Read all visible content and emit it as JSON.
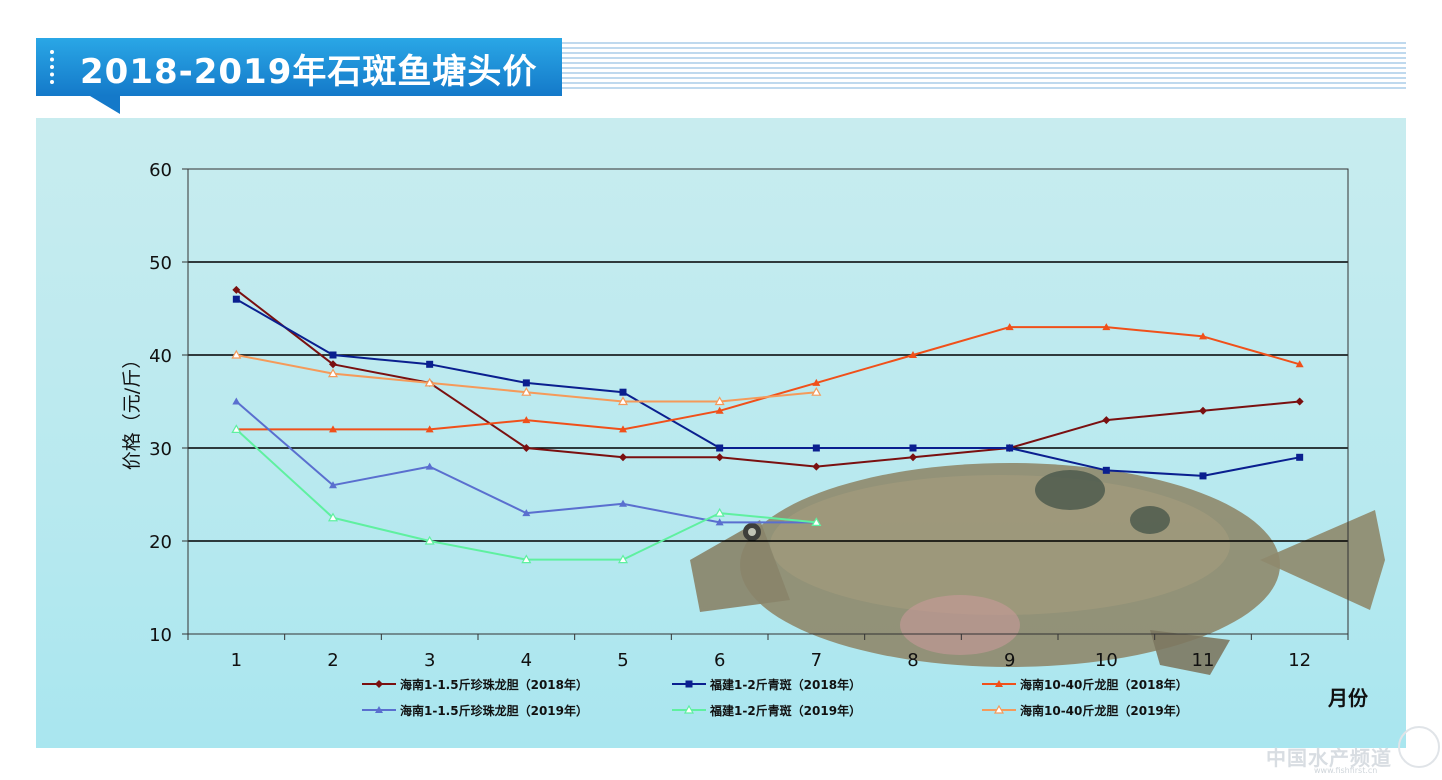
{
  "header": {
    "title": "2018-2019年石斑鱼塘头价"
  },
  "watermark": {
    "text": "中国水产频道",
    "url_text": "www.fishfirst.cn"
  },
  "colors": {
    "title_band": "#1a8fd8",
    "panel": "#c0ebef"
  },
  "chart_data": {
    "type": "line",
    "title": "",
    "xlabel": "月份",
    "ylabel": "价格（元/斤）",
    "ylim": [
      10,
      60
    ],
    "yticks": [
      10,
      20,
      30,
      40,
      50,
      60
    ],
    "categories": [
      "1",
      "2",
      "3",
      "4",
      "5",
      "6",
      "7",
      "8",
      "9",
      "10",
      "11",
      "12"
    ],
    "grid": true,
    "legend_position": "bottom",
    "series": [
      {
        "name": "海南1-1.5斤珍珠龙胆（2018年）",
        "color": "#7a1010",
        "marker": "diamond",
        "values": [
          47,
          39,
          37,
          30,
          29,
          29,
          28,
          29,
          30,
          33,
          34,
          35
        ]
      },
      {
        "name": "福建1-2斤青斑（2018年）",
        "color": "#0a1f8f",
        "marker": "square",
        "values": [
          46,
          40,
          39,
          37,
          36,
          30,
          30,
          30,
          30,
          27.6,
          27,
          29
        ]
      },
      {
        "name": "海南10-40斤龙胆（2018年）",
        "color": "#f0501a",
        "marker": "triangle",
        "values": [
          32,
          32,
          32,
          33,
          32,
          34,
          37,
          40,
          43,
          43,
          42,
          39
        ]
      },
      {
        "name": "海南1-1.5斤珍珠龙胆（2019年）",
        "color": "#5a6fcf",
        "marker": "triangle",
        "values": [
          35,
          26,
          28,
          23,
          24,
          22,
          22,
          null,
          null,
          null,
          null,
          null
        ]
      },
      {
        "name": "福建1-2斤青斑（2019年）",
        "color": "#5ff0a0",
        "marker": "triangle-open",
        "values": [
          32,
          22.5,
          20,
          18,
          18,
          23,
          22,
          null,
          null,
          null,
          null,
          null
        ]
      },
      {
        "name": "海南10-40斤龙胆（2019年）",
        "color": "#f59a5a",
        "marker": "triangle-open",
        "values": [
          40,
          38,
          37,
          36,
          35,
          35,
          36,
          null,
          null,
          null,
          null,
          null
        ]
      }
    ]
  }
}
